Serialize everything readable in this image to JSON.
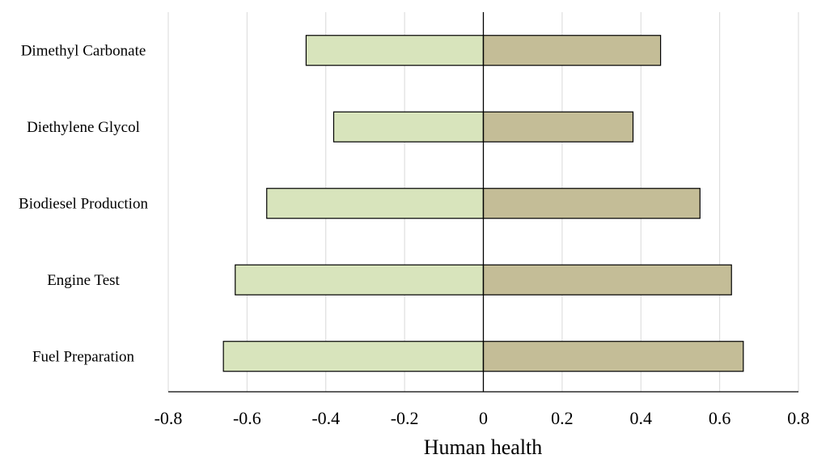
{
  "chart_data": {
    "type": "bar",
    "orientation": "horizontal",
    "title": "",
    "xlabel": "Human health",
    "ylabel": "",
    "categories": [
      "Dimethyl Carbonate",
      "Diethylene Glycol",
      "Biodiesel Production",
      "Engine Test",
      "Fuel Preparation"
    ],
    "series": [
      {
        "values": [
          -0.45,
          -0.38,
          -0.55,
          -0.63,
          -0.66
        ],
        "color": "#d8e4bc"
      },
      {
        "values": [
          0.45,
          0.38,
          0.55,
          0.63,
          0.66
        ],
        "color": "#c4bd97"
      }
    ],
    "xlim": [
      -0.8,
      0.8
    ],
    "xticks": [
      -0.8,
      -0.6,
      -0.4,
      -0.2,
      0,
      0.2,
      0.4,
      0.6,
      0.8
    ],
    "xtick_labels": [
      "-0.8",
      "-0.6",
      "-0.4",
      "-0.2",
      "0",
      "0.2",
      "0.4",
      "0.6",
      "0.8"
    ],
    "grid": "vertical",
    "legend": "none"
  }
}
